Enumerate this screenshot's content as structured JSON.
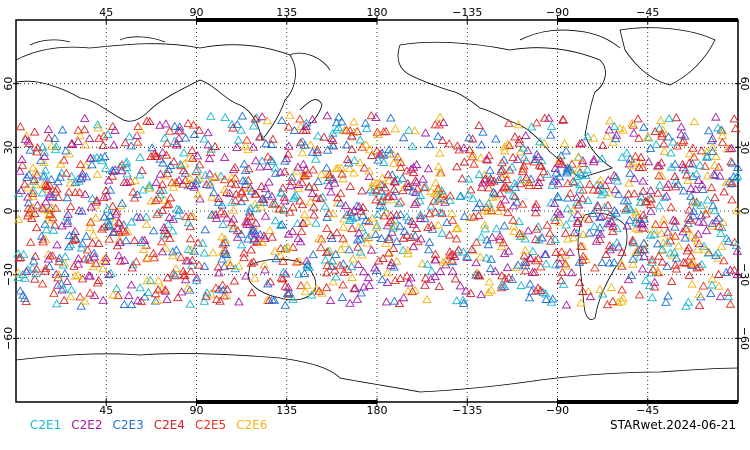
{
  "map": {
    "type": "scatter",
    "projection": "cylindrical-equidistant",
    "lon_range": [
      0,
      360
    ],
    "lat_range": [
      -90,
      90
    ],
    "grid": "dotted",
    "marker": "open-triangle",
    "lon_tick_labels": [
      "45",
      "90",
      "135",
      "180",
      "−135",
      "−90",
      "−45"
    ],
    "lon_tick_values": [
      45,
      90,
      135,
      180,
      225,
      270,
      315
    ],
    "lat_tick_labels": [
      "60",
      "30",
      "0",
      "−30",
      "−60"
    ],
    "lat_tick_values": [
      60,
      30,
      0,
      -30,
      -60
    ]
  },
  "legend": [
    {
      "label": "C2E1",
      "color": "#17b7cf"
    },
    {
      "label": "C2E2",
      "color": "#a61aa6"
    },
    {
      "label": "C2E3",
      "color": "#1f6fd6"
    },
    {
      "label": "C2E4",
      "color": "#d6202a"
    },
    {
      "label": "C2E5",
      "color": "#e8301c"
    },
    {
      "label": "C2E6",
      "color": "#f2b40f"
    }
  ],
  "chart_data": {
    "type": "scatter",
    "xlabel": "",
    "ylabel": "",
    "xlim": [
      0,
      360
    ],
    "ylim": [
      -90,
      90
    ],
    "observation_band_lat": [
      -45,
      45
    ],
    "series": [
      {
        "name": "C2E1",
        "color": "#17b7cf"
      },
      {
        "name": "C2E2",
        "color": "#a61aa6"
      },
      {
        "name": "C2E3",
        "color": "#1f6fd6"
      },
      {
        "name": "C2E4",
        "color": "#d6202a"
      },
      {
        "name": "C2E5",
        "color": "#e8301c"
      },
      {
        "name": "C2E6",
        "color": "#f2b40f"
      }
    ]
  },
  "stamp": "STARwet.2024-06-21"
}
